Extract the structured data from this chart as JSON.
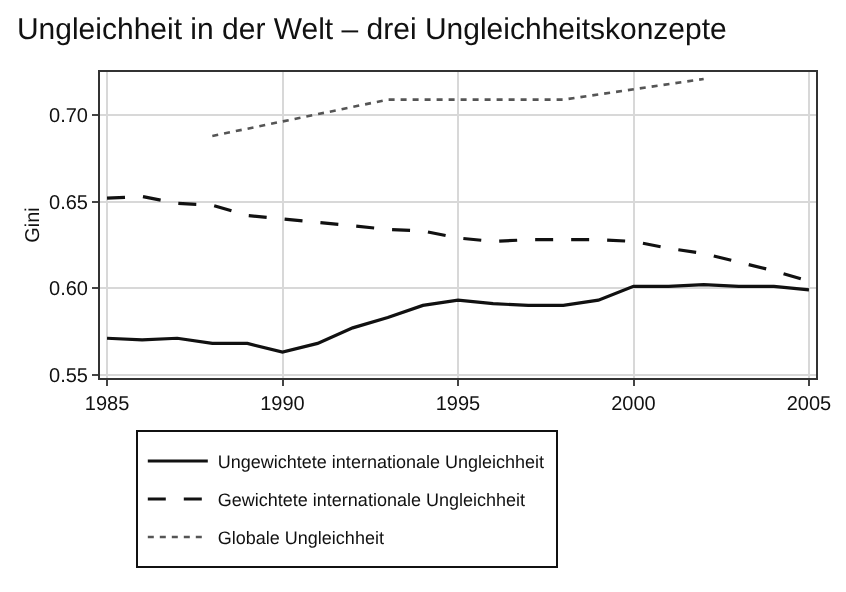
{
  "chart_data": {
    "type": "line",
    "title": "Ungleichheit in der Welt – drei Ungleichheitskonzepte",
    "ylabel": "Gini",
    "x": [
      1985,
      1986,
      1987,
      1988,
      1989,
      1990,
      1991,
      1992,
      1993,
      1994,
      1995,
      1996,
      1997,
      1998,
      1999,
      2000,
      2001,
      2002,
      2003,
      2004,
      2005
    ],
    "series": [
      {
        "name": "Ungewichtete internationale Ungleichheit",
        "color": "#111111",
        "line_style": "solid",
        "values": [
          0.571,
          0.57,
          0.571,
          0.568,
          0.568,
          0.563,
          0.568,
          0.577,
          0.583,
          0.59,
          0.593,
          0.591,
          0.59,
          0.59,
          0.593,
          0.601,
          0.601,
          0.602,
          0.601,
          0.601,
          0.599
        ]
      },
      {
        "name": "Gewichtete internationale Ungleichheit",
        "color": "#111111",
        "line_style": "dashed",
        "values": [
          0.652,
          0.653,
          0.649,
          0.648,
          0.642,
          0.64,
          0.638,
          0.636,
          0.634,
          0.633,
          0.629,
          0.627,
          0.628,
          0.628,
          0.628,
          0.627,
          0.623,
          0.62,
          0.615,
          0.61,
          0.604
        ]
      },
      {
        "name": "Globale Ungleichheit",
        "color": "#555555",
        "line_style": "dotted",
        "x": [
          1988,
          1993,
          1998,
          2002
        ],
        "values": [
          0.688,
          0.709,
          0.709,
          0.721
        ]
      }
    ],
    "xlim": [
      1984.8,
      2005.2
    ],
    "xticks": [
      1985,
      1990,
      1995,
      2000,
      2005
    ],
    "ylim": [
      0.548,
      0.725
    ],
    "yticks": [
      {
        "value": 0.55,
        "label": "0.55"
      },
      {
        "value": 0.6,
        "label": "0.60"
      },
      {
        "value": 0.65,
        "label": "0.65"
      },
      {
        "value": 0.7,
        "label": "0.70"
      }
    ],
    "grid": true,
    "legend": "bottom"
  }
}
